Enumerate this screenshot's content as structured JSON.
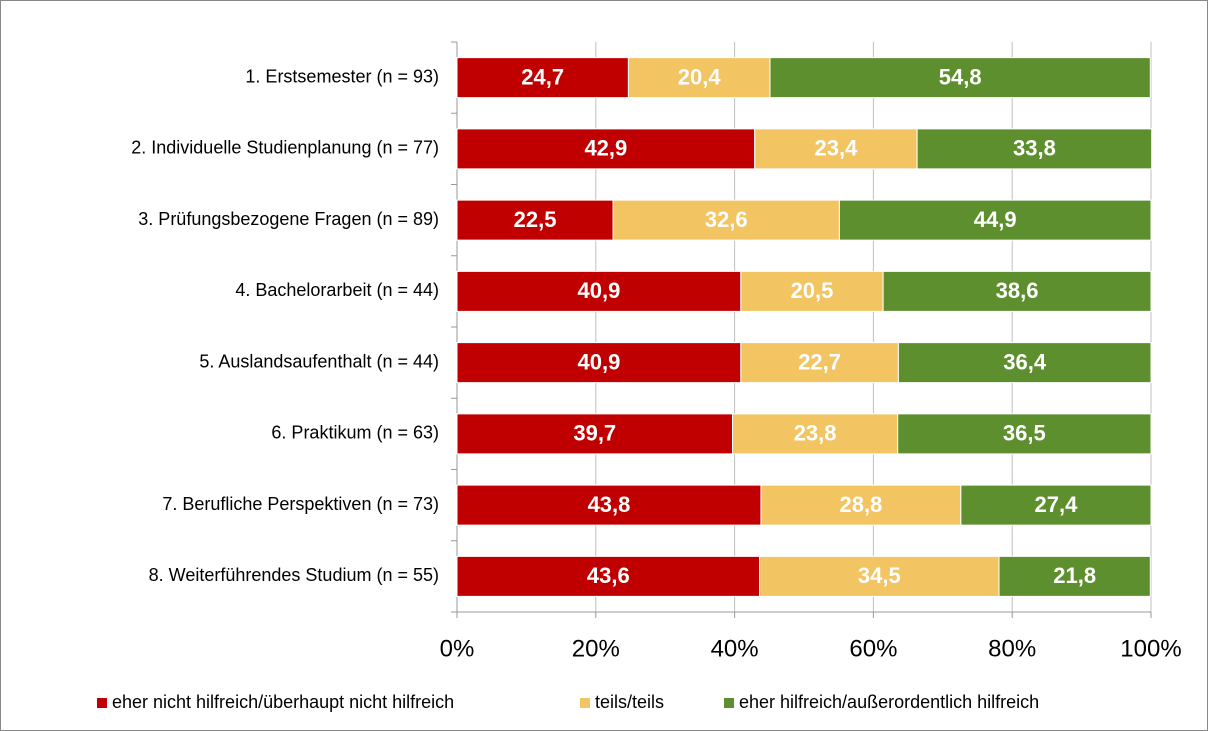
{
  "chart_data": {
    "type": "bar",
    "orientation": "horizontal",
    "stacked": true,
    "categories": [
      "1. Erstsemester (n = 93)",
      "2. Individuelle Studienplanung (n = 77)",
      "3. Prüfungsbezogene Fragen (n = 89)",
      "4. Bachelorarbeit (n = 44)",
      "5. Auslandsaufenthalt (n = 44)",
      "6. Praktikum (n = 63)",
      "7. Berufliche Perspektiven (n = 73)",
      "8. Weiterführendes Studium (n = 55)"
    ],
    "series": [
      {
        "name": "eher nicht hilfreich/überhaupt nicht hilfreich",
        "color": "#c00000",
        "values": [
          24.7,
          42.9,
          22.5,
          40.9,
          40.9,
          39.7,
          43.8,
          43.6
        ],
        "value_labels": [
          "24,7",
          "42,9",
          "22,5",
          "40,9",
          "40,9",
          "39,7",
          "43,8",
          "43,6"
        ]
      },
      {
        "name": "teils/teils",
        "color": "#f2c462",
        "values": [
          20.4,
          23.4,
          32.6,
          20.5,
          22.7,
          23.8,
          28.8,
          34.5
        ],
        "value_labels": [
          "20,4",
          "23,4",
          "32,6",
          "20,5",
          "22,7",
          "23,8",
          "28,8",
          "34,5"
        ]
      },
      {
        "name": "eher hilfreich/außerordentlich hilfreich",
        "color": "#5e8f2e",
        "values": [
          54.8,
          33.8,
          44.9,
          38.6,
          36.4,
          36.5,
          27.4,
          21.8
        ],
        "value_labels": [
          "54,8",
          "33,8",
          "44,9",
          "38,6",
          "36,4",
          "36,5",
          "27,4",
          "21,8"
        ]
      }
    ],
    "xlim": [
      0,
      100
    ],
    "xticks": [
      {
        "value": 0,
        "label": "0%"
      },
      {
        "value": 20,
        "label": "20%"
      },
      {
        "value": 40,
        "label": "40%"
      },
      {
        "value": 60,
        "label": "60%"
      },
      {
        "value": 80,
        "label": "80%"
      },
      {
        "value": 100,
        "label": "100%"
      }
    ],
    "grid": true,
    "legend": "bottom"
  }
}
